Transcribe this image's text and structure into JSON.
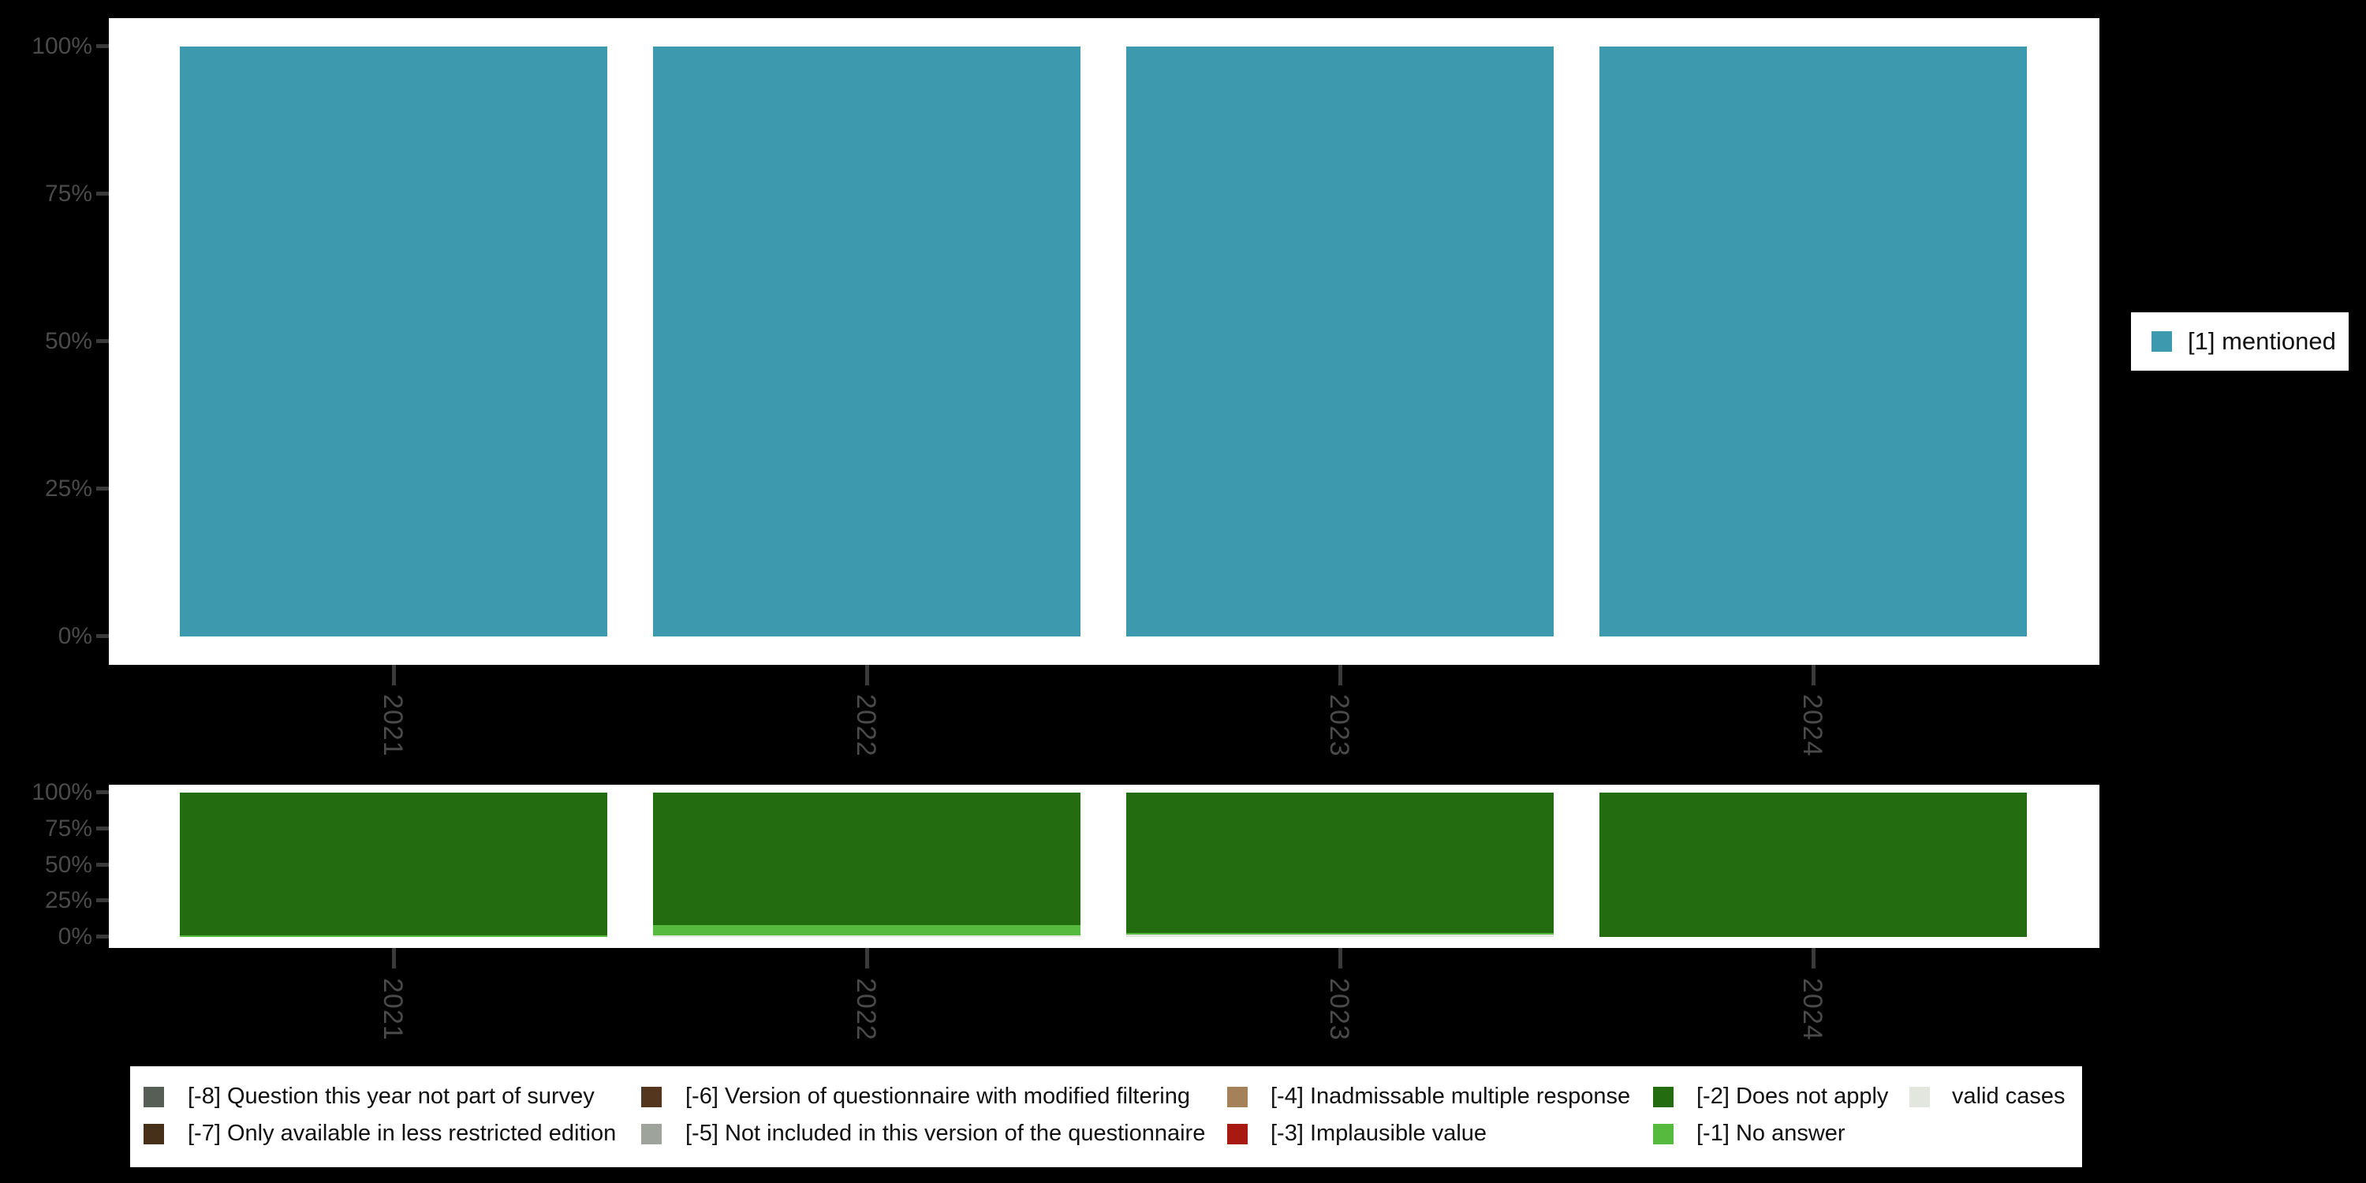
{
  "colors": {
    "background": "#000000",
    "panel": "#ffffff",
    "axis_text": "#4a4a4a",
    "tick_mark": "#3a3a3a",
    "legend_text": "#111111"
  },
  "legend_right": {
    "label": "[1] mentioned",
    "color": "#3d99ae"
  },
  "legend_bottom": {
    "items": [
      {
        "label": "[-8] Question this year not part of survey",
        "color": "#565e56",
        "column": 0,
        "row": 0
      },
      {
        "label": "[-7] Only available in less restricted edition",
        "color": "#46301a",
        "column": 0,
        "row": 1
      },
      {
        "label": "[-6] Version of questionnaire with modified filtering",
        "color": "#53361d",
        "column": 1,
        "row": 0
      },
      {
        "label": "[-5] Not included in this version of the questionnaire",
        "color": "#9ea39c",
        "column": 1,
        "row": 1
      },
      {
        "label": "[-4] Inadmissable multiple response",
        "color": "#a5815a",
        "column": 2,
        "row": 0
      },
      {
        "label": "[-3] Implausible value",
        "color": "#a81911",
        "column": 2,
        "row": 1
      },
      {
        "label": "[-2] Does not apply",
        "color": "#236c10",
        "column": 3,
        "row": 0
      },
      {
        "label": "[-1] No answer",
        "color": "#56ba3f",
        "column": 3,
        "row": 1
      },
      {
        "label": "valid cases",
        "color": "#e2e6df",
        "column": 4,
        "row": 0
      }
    ]
  },
  "chart_data": [
    {
      "type": "bar",
      "subtype": "stacked-percent",
      "title": "",
      "categories": [
        "2021",
        "2022",
        "2023",
        "2024"
      ],
      "series": [
        {
          "name": "[1] mentioned",
          "color": "#3d99ae",
          "values": [
            100,
            100,
            100,
            100
          ]
        }
      ],
      "ylim": [
        0,
        100
      ],
      "ytick_values": [
        0,
        25,
        50,
        75,
        100
      ],
      "ytick_labels": [
        "0%",
        "25%",
        "50%",
        "75%",
        "100%"
      ],
      "grid": false,
      "legend_position": "right"
    },
    {
      "type": "bar",
      "subtype": "stacked-percent",
      "title": "",
      "categories": [
        "2021",
        "2022",
        "2023",
        "2024"
      ],
      "series": [
        {
          "name": "valid cases",
          "color": "#e2e6df",
          "values": [
            0,
            1,
            1.5,
            0
          ]
        },
        {
          "name": "[-1] No answer",
          "color": "#56ba3f",
          "values": [
            1,
            7,
            1.5,
            0
          ]
        },
        {
          "name": "[-2] Does not apply",
          "color": "#236c10",
          "values": [
            99,
            92,
            97,
            100
          ]
        }
      ],
      "stack_order": "bottom-to-top",
      "ylim": [
        0,
        100
      ],
      "ytick_values": [
        0,
        25,
        50,
        75,
        100
      ],
      "ytick_labels": [
        "0%",
        "25%",
        "50%",
        "75%",
        "100%"
      ],
      "grid": false,
      "legend_position": "bottom"
    }
  ]
}
